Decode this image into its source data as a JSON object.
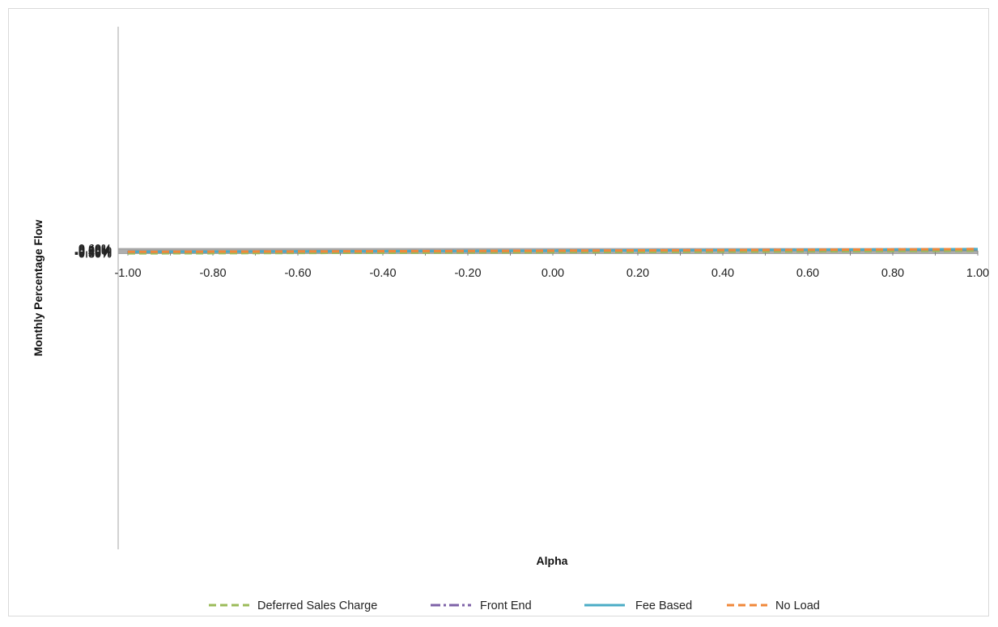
{
  "chart_data": {
    "type": "line",
    "title": "",
    "xlabel": "Alpha",
    "ylabel": "Monthly Percentage Flow",
    "xlim": [
      -1.0,
      1.0
    ],
    "ylim": [
      -0.8,
      0.6
    ],
    "x_ticks": [
      "-1.00",
      "-0.80",
      "-0.60",
      "-0.40",
      "-0.20",
      "0.00",
      "0.20",
      "0.40",
      "0.60",
      "0.80",
      "1.00"
    ],
    "y_ticks": [
      "0.60%",
      "0.40%",
      "0.20%",
      "0.00%",
      "-0.20%",
      "-0.40%",
      "-0.60%",
      "-0.80%"
    ],
    "grid": "horizontal",
    "legend_position": "bottom",
    "x": [
      -1.0,
      -0.8,
      -0.6,
      -0.4,
      -0.2,
      0.0,
      0.2,
      0.4,
      0.6,
      0.8,
      1.0
    ],
    "series": [
      {
        "name": "Deferred Sales Charge",
        "style": "dashed",
        "color": "#9bbb59",
        "values": [
          -0.72,
          -0.665,
          -0.605,
          -0.545,
          -0.48,
          -0.41,
          -0.335,
          -0.255,
          -0.165,
          -0.075,
          0.02
        ]
      },
      {
        "name": "Front End",
        "style": "dash-dot",
        "color": "#7e62a8",
        "values": [
          -0.31,
          -0.26,
          -0.205,
          -0.145,
          -0.085,
          -0.005,
          0.075,
          0.155,
          0.24,
          0.33,
          0.43
        ]
      },
      {
        "name": "Fee Based",
        "style": "solid",
        "color": "#4bacc6",
        "values": [
          -0.31,
          -0.26,
          -0.205,
          -0.145,
          -0.085,
          -0.005,
          0.075,
          0.155,
          0.24,
          0.33,
          0.43
        ]
      },
      {
        "name": "No Load",
        "style": "dashed",
        "color": "#f0883a",
        "values": [
          -0.31,
          -0.26,
          -0.205,
          -0.145,
          -0.085,
          -0.005,
          0.075,
          0.155,
          0.24,
          0.33,
          0.43
        ]
      }
    ]
  }
}
